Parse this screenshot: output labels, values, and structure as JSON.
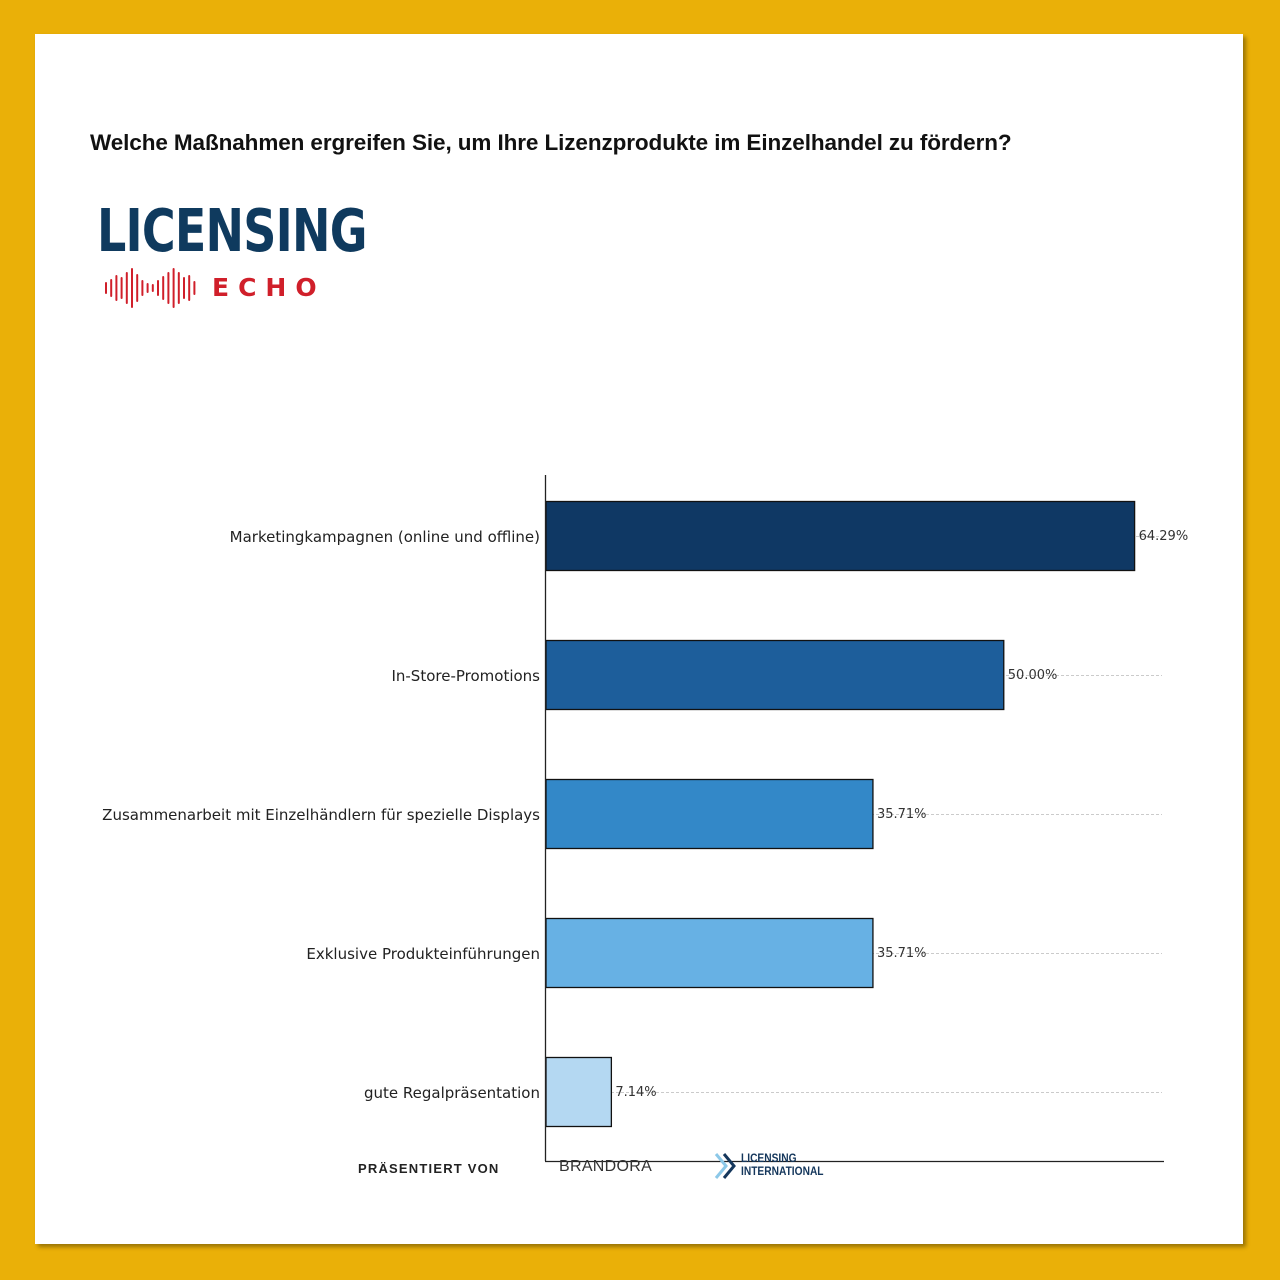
{
  "question": "Welche Maßnahmen ergreifen Sie, um Ihre Lizenzprodukte im Einzelhandel zu fördern?",
  "logo": {
    "main": "LICENSING",
    "sub": "ECHO",
    "main_color": "#0F3A5E",
    "sub_color": "#D01F2A"
  },
  "footer": {
    "presented_by": "PRÄSENTIERT VON",
    "brand1": "BRANDORA",
    "brand2_line1": "LICENSING",
    "brand2_line2": "INTERNATIONAL"
  },
  "chart_data": {
    "type": "bar",
    "orientation": "horizontal",
    "title": "",
    "xlabel": "",
    "ylabel": "",
    "categories": [
      "Marketingkampagnen (online und offline)",
      "In-Store-Promotions",
      "Zusammenarbeit mit Einzelhändlern für spezielle Displays",
      "Exklusive Produkteinführungen",
      "gute Regalpräsentation"
    ],
    "values": [
      64.29,
      50.0,
      35.71,
      35.71,
      7.14
    ],
    "data_labels": [
      "64.29%",
      "50.00%",
      "35.71%",
      "35.71%",
      "7.14%"
    ],
    "colors": [
      "#0F3864",
      "#1D5E9B",
      "#3388C8",
      "#67B1E4",
      "#B4D8F2"
    ],
    "xlim": [
      0,
      67.5
    ],
    "grid": "horizontal dashed",
    "legend": "none"
  }
}
